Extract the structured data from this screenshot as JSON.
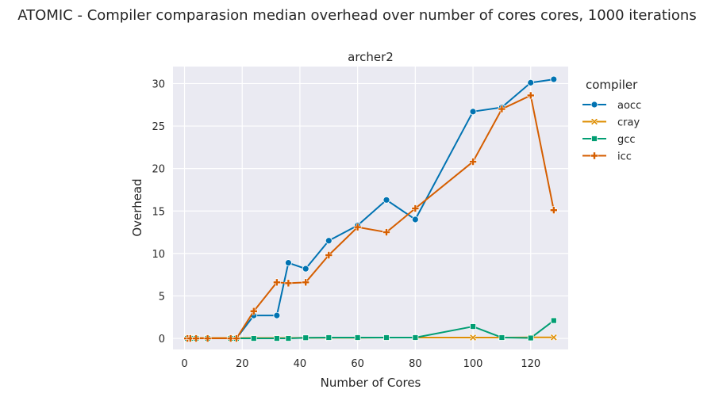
{
  "figure": {
    "suptitle": "ATOMIC - Compiler comparasion median overhead over number of cores cores, 1000 iterations"
  },
  "chart_data": {
    "type": "line",
    "title": "archer2",
    "xlabel": "Number of Cores",
    "ylabel": "Overhead",
    "xlim": [
      -4,
      133
    ],
    "ylim": [
      -1.3,
      32
    ],
    "xticks": [
      0,
      20,
      40,
      60,
      80,
      100,
      120
    ],
    "yticks": [
      0,
      5,
      10,
      15,
      20,
      25,
      30
    ],
    "grid": true,
    "legend": {
      "title": "compiler",
      "placement": "outside-top-right"
    },
    "series": [
      {
        "name": "aocc",
        "color": "#0173b2",
        "marker": "circle",
        "x": [
          1,
          2,
          4,
          8,
          16,
          18,
          24,
          32,
          36,
          42,
          50,
          60,
          70,
          80,
          100,
          110,
          120,
          128
        ],
        "y": [
          0.0,
          0.0,
          0.0,
          0.0,
          0.0,
          0.0,
          2.7,
          2.7,
          8.9,
          8.2,
          11.5,
          13.3,
          16.3,
          14.0,
          26.7,
          27.2,
          30.1,
          30.5
        ]
      },
      {
        "name": "cray",
        "color": "#de8f05",
        "marker": "x",
        "x": [
          1,
          2,
          4,
          8,
          16,
          18,
          24,
          32,
          36,
          42,
          50,
          60,
          70,
          80,
          100,
          110,
          120,
          128
        ],
        "y": [
          0.05,
          0.05,
          0.05,
          0.05,
          0.05,
          0.05,
          0.05,
          0.05,
          0.05,
          0.08,
          0.08,
          0.08,
          0.1,
          0.1,
          0.1,
          0.1,
          0.12,
          0.12
        ]
      },
      {
        "name": "gcc",
        "color": "#029e73",
        "marker": "square",
        "x": [
          1,
          2,
          4,
          8,
          16,
          18,
          24,
          32,
          36,
          42,
          50,
          60,
          70,
          80,
          100,
          110,
          120,
          128
        ],
        "y": [
          0.0,
          0.0,
          0.0,
          0.0,
          0.0,
          0.0,
          0.0,
          0.0,
          0.0,
          0.08,
          0.1,
          0.1,
          0.1,
          0.1,
          1.4,
          0.1,
          0.05,
          2.1
        ]
      },
      {
        "name": "icc",
        "color": "#d55e00",
        "marker": "plus",
        "x": [
          1,
          2,
          4,
          8,
          16,
          18,
          24,
          32,
          36,
          42,
          50,
          60,
          70,
          80,
          100,
          110,
          120,
          128
        ],
        "y": [
          0.0,
          0.0,
          0.0,
          0.0,
          0.0,
          0.0,
          3.2,
          6.6,
          6.5,
          6.6,
          9.8,
          13.1,
          12.5,
          15.3,
          20.8,
          27.0,
          28.6,
          15.1
        ]
      }
    ]
  }
}
